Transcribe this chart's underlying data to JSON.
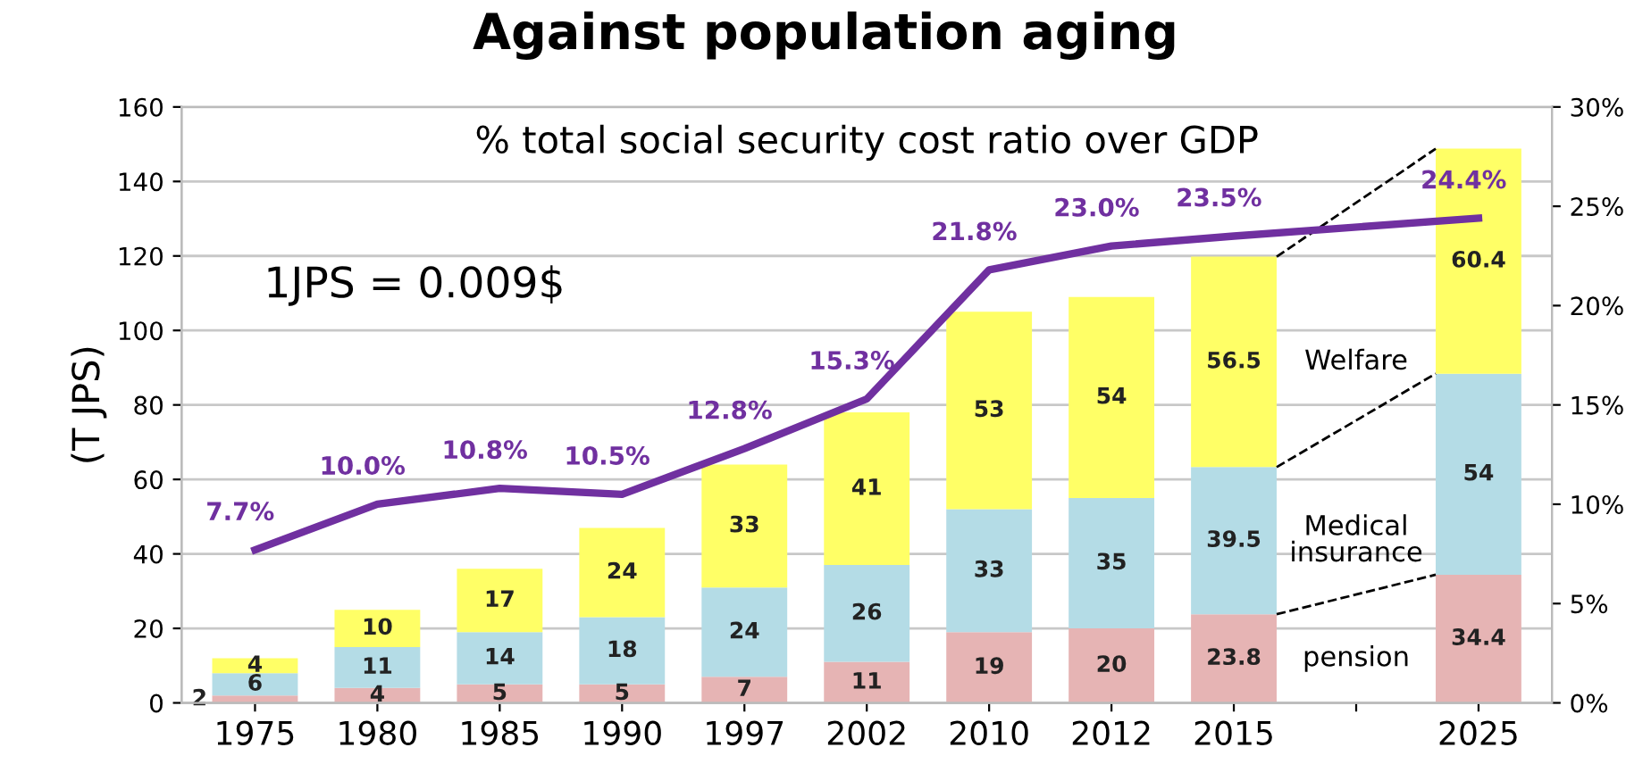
{
  "chart_data": {
    "type": "bar",
    "title": "Against population aging",
    "ylabel": "(T JPS)",
    "annotations": [
      "% total social security cost ratio over GDP",
      "1JPS = 0.009$"
    ],
    "categories": [
      "1975",
      "1980",
      "1985",
      "1990",
      "1997",
      "2002",
      "2010",
      "2012",
      "2015",
      null,
      "2025"
    ],
    "stacked": true,
    "series": [
      {
        "name": "pension",
        "color": "#e6b4b4",
        "values": [
          2,
          4,
          5,
          5,
          7,
          11,
          19,
          20,
          23.8,
          null,
          34.4
        ],
        "value_labels": [
          "2",
          "4",
          "5",
          "5",
          "7",
          "11",
          "19",
          "20",
          "23.8",
          null,
          "34.4"
        ]
      },
      {
        "name": "Medical\ninsurance",
        "color": "#b4dce6",
        "values": [
          6,
          11,
          14,
          18,
          24,
          26,
          33,
          35,
          39.5,
          null,
          54
        ],
        "value_labels": [
          "6",
          "11",
          "14",
          "18",
          "24",
          "26",
          "33",
          "35",
          "39.5",
          null,
          "54"
        ]
      },
      {
        "name": "Welfare",
        "color": "#ffff66",
        "values": [
          4,
          10,
          17,
          24,
          33,
          41,
          53,
          54,
          56.5,
          null,
          60.4
        ],
        "value_labels": [
          "4",
          "10",
          "17",
          "24",
          "33",
          "41",
          "53",
          "54",
          "56.5",
          null,
          "60.4"
        ]
      },
      {
        "type": "line",
        "axis": "y2",
        "color": "#7030a0",
        "values": [
          7.7,
          10.0,
          10.8,
          10.5,
          12.8,
          15.3,
          21.8,
          23.0,
          23.5,
          null,
          24.4
        ],
        "value_labels": [
          "7.7%",
          "10.0%",
          "10.8%",
          "10.5%",
          "12.8%",
          "15.3%",
          "21.8%",
          "23.0%",
          "23.5%",
          null,
          "24.4%"
        ]
      }
    ],
    "ylim": [
      0,
      160
    ],
    "yticks": [
      0,
      20,
      40,
      60,
      80,
      100,
      120,
      140,
      160
    ],
    "y2lim": [
      0,
      30
    ],
    "y2ticks": [
      {
        "value": 0,
        "label": "0%"
      },
      {
        "value": 5,
        "label": "5%"
      },
      {
        "value": 10,
        "label": "10%"
      },
      {
        "value": 15,
        "label": "15%"
      },
      {
        "value": 20,
        "label": "20%"
      },
      {
        "value": 25,
        "label": "25%"
      },
      {
        "value": 30,
        "label": "30%"
      }
    ],
    "grid": "y",
    "legend": false,
    "marker": "none",
    "line_style": "solid"
  }
}
